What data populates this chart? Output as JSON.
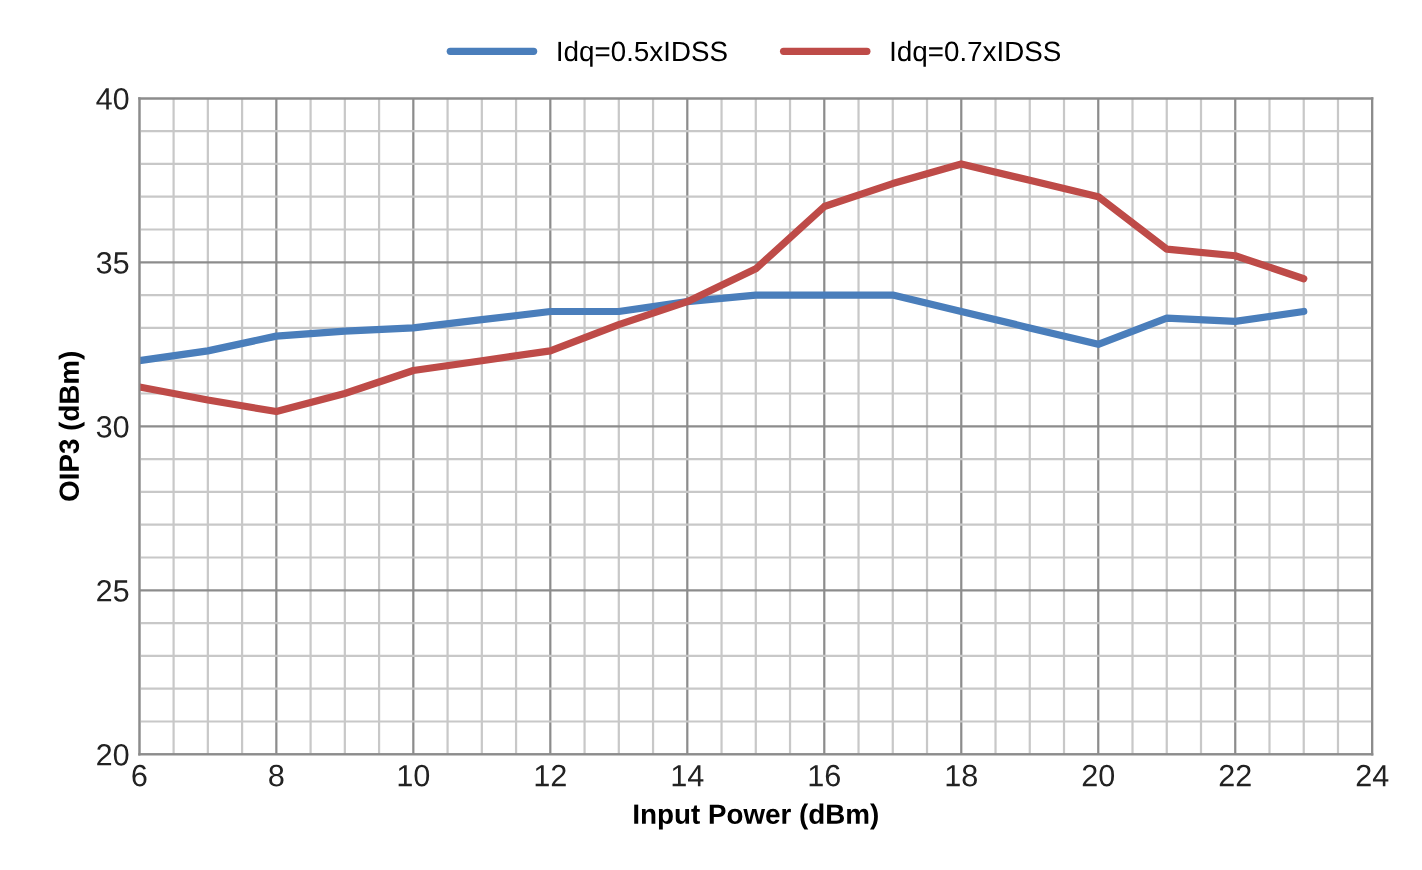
{
  "chart_data": {
    "type": "line",
    "xlabel": "Input Power (dBm)",
    "ylabel": "OIP3 (dBm)",
    "x": [
      6,
      7,
      8,
      9,
      10,
      11,
      12,
      13,
      14,
      15,
      16,
      17,
      18,
      19,
      20,
      21,
      22,
      23
    ],
    "series": [
      {
        "name": "Idq=0.5xIDSS",
        "color": "#4a7ebb",
        "values": [
          32.0,
          32.3,
          32.75,
          32.9,
          33.0,
          33.25,
          33.5,
          33.5,
          33.8,
          34.0,
          34.0,
          34.0,
          33.5,
          33.0,
          32.5,
          33.3,
          33.2,
          33.5
        ]
      },
      {
        "name": "Idq=0.7xIDSS",
        "color": "#be4b48",
        "values": [
          31.2,
          30.8,
          30.45,
          31.0,
          31.7,
          32.0,
          32.3,
          33.1,
          33.8,
          34.8,
          36.7,
          37.4,
          38.0,
          37.5,
          37.0,
          35.4,
          35.2,
          34.5
        ]
      }
    ],
    "xlim": [
      6,
      24
    ],
    "xticks": [
      6,
      8,
      10,
      12,
      14,
      16,
      18,
      20,
      22,
      24
    ],
    "ylim": [
      20,
      40
    ],
    "yticks": [
      20,
      25,
      30,
      35,
      40
    ],
    "grid": true,
    "legend": "top",
    "marker": "none",
    "line_style": "solid"
  }
}
